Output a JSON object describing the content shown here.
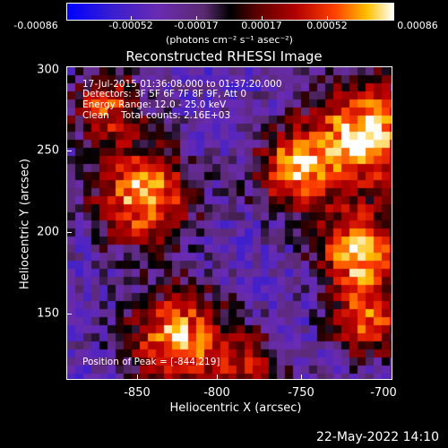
{
  "colorbar": {
    "ticks": [
      "-0.00086",
      "-0.00052",
      "-0.00017",
      "0.00017",
      "0.00052",
      "0.00086"
    ],
    "unit": "(photons cm⁻² s⁻¹ asec⁻²)",
    "colors": [
      "#0000ff",
      "#6a2bb0",
      "#000000",
      "#b20000",
      "#ff4000",
      "#ffc000",
      "#ffffff"
    ]
  },
  "title": "Reconstructed RHESSI Image",
  "info": {
    "time": "17-Jul-2015 01:36:08.000 to 01:37:20.000",
    "detectors": "Detectors: 3F 5F 6F 7F 8F 9F, Att 0",
    "energy": "Energy Range: 12.0 - 25.0 keV",
    "clean": "Clean    Total counts: 2.16E+03",
    "peak": "Position of Peak = [-844,219]"
  },
  "axes": {
    "xlabel": "Heliocentric X (arcsec)",
    "ylabel": "Heliocentric Y (arcsec)",
    "xticks": [
      "-850",
      "-800",
      "-750",
      "-700"
    ],
    "yticks": [
      "300",
      "250",
      "200",
      "150"
    ],
    "xlim": [
      -895,
      -700
    ],
    "ylim": [
      111,
      301
    ]
  },
  "timestamp": "22-May-2022 14:10"
}
